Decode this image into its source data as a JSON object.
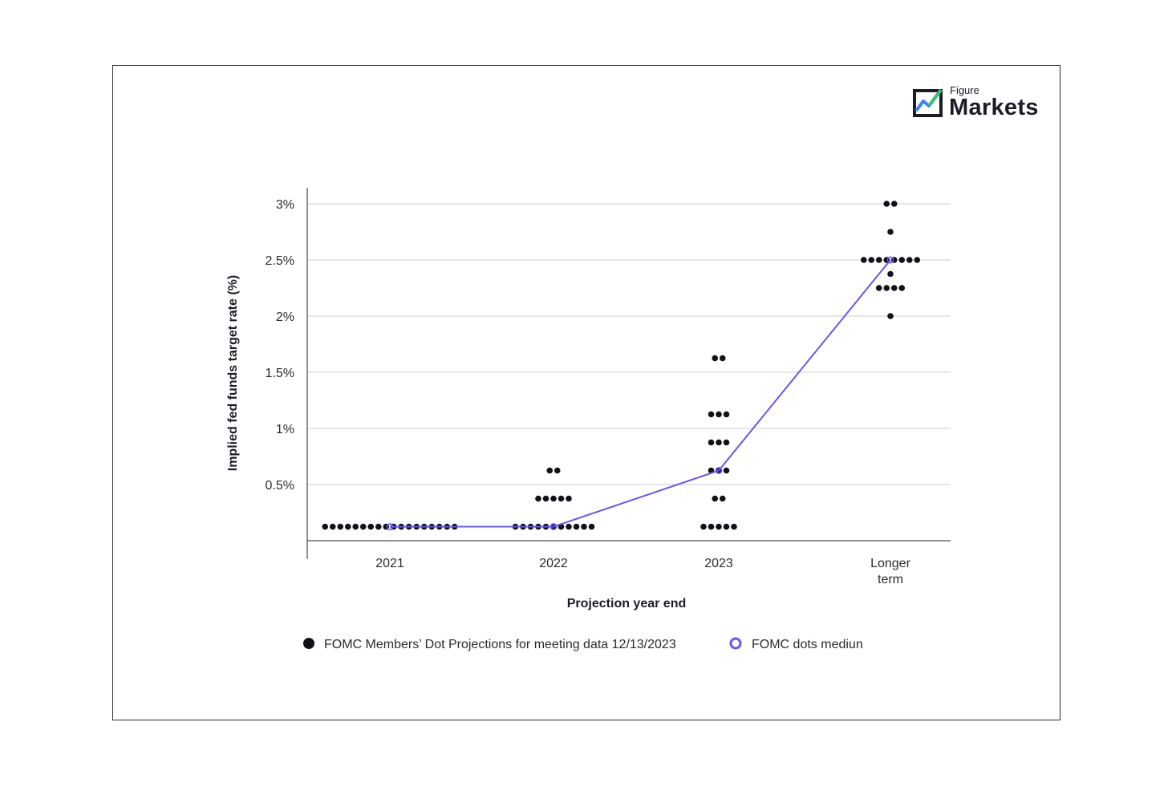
{
  "brand": {
    "small": "Figure",
    "big": "Markets",
    "icon": "figure-markets-logo-icon",
    "colors": {
      "dark": "#1b1b2a",
      "green": "#35c16f",
      "blue": "#3b82f6"
    }
  },
  "colors": {
    "dots": "#111118",
    "median": "#6757f0",
    "grid": "#dddddd",
    "axis": "#222222"
  },
  "chart_data": {
    "type": "scatter",
    "xlabel": "Projection year end",
    "ylabel": "Implied fed funds target rate (%)",
    "categories": [
      "2021",
      "2022",
      "2023",
      "Longer term"
    ],
    "category_lines": [
      [
        "2021"
      ],
      [
        "2022"
      ],
      [
        "2023"
      ],
      [
        "Longer",
        "term"
      ]
    ],
    "yticks": [
      0.5,
      1,
      1.5,
      2,
      2.5,
      3
    ],
    "ytick_labels": [
      "0.5%",
      "1%",
      "1.5%",
      "2%",
      "2.5%",
      "3%"
    ],
    "ylim": [
      0,
      3.1
    ],
    "grid": true,
    "legend_position": "bottom",
    "series": [
      {
        "name": "FOMC Members’ Dot Projections for meeting data 12/13/2023",
        "marker": "filled-dot",
        "groups": [
          {
            "category": "2021",
            "points": [
              {
                "y": 0.125,
                "count": 18
              }
            ]
          },
          {
            "category": "2022",
            "points": [
              {
                "y": 0.125,
                "count": 11
              },
              {
                "y": 0.375,
                "count": 5
              },
              {
                "y": 0.625,
                "count": 2
              }
            ]
          },
          {
            "category": "2023",
            "points": [
              {
                "y": 0.125,
                "count": 5
              },
              {
                "y": 0.375,
                "count": 2
              },
              {
                "y": 0.625,
                "count": 3
              },
              {
                "y": 0.875,
                "count": 3
              },
              {
                "y": 1.125,
                "count": 3
              },
              {
                "y": 1.625,
                "count": 2
              }
            ]
          },
          {
            "category": "Longer term",
            "points": [
              {
                "y": 2.0,
                "count": 1
              },
              {
                "y": 2.25,
                "count": 4
              },
              {
                "y": 2.375,
                "count": 1
              },
              {
                "y": 2.5,
                "count": 8
              },
              {
                "y": 2.75,
                "count": 1
              },
              {
                "y": 3.0,
                "count": 2
              }
            ]
          }
        ]
      },
      {
        "name": "FOMC dots mediun",
        "marker": "hollow-circle-line",
        "values": [
          0.125,
          0.125,
          0.625,
          2.5
        ]
      }
    ]
  }
}
